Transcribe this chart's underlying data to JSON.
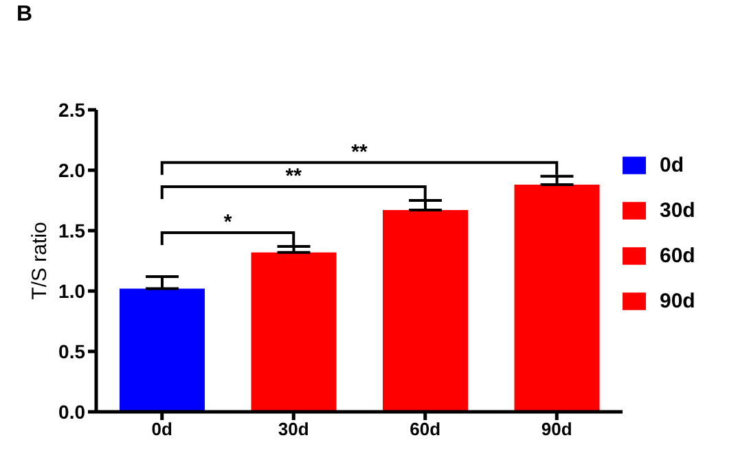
{
  "chart_data": {
    "type": "bar",
    "title": "B",
    "ylabel": "T/S ratio",
    "categories": [
      "0d",
      "30d",
      "60d",
      "90d"
    ],
    "series": [
      {
        "name": "0d",
        "color": "#0000ff",
        "values": [
          1.02,
          null,
          null,
          null
        ],
        "errors": [
          [
            1.02,
            1.12
          ],
          null,
          null,
          null
        ]
      },
      {
        "name": "30d",
        "color": "#ff0000",
        "values": [
          null,
          1.32,
          null,
          null
        ],
        "errors": [
          null,
          [
            1.32,
            1.37
          ],
          null,
          null
        ]
      },
      {
        "name": "60d",
        "color": "#ff0000",
        "values": [
          null,
          null,
          1.67,
          null
        ],
        "errors": [
          null,
          null,
          [
            1.67,
            1.75
          ],
          null
        ]
      },
      {
        "name": "90d",
        "color": "#ff0000",
        "values": [
          null,
          null,
          null,
          1.88
        ],
        "errors": [
          null,
          null,
          null,
          [
            1.88,
            1.95
          ]
        ]
      }
    ],
    "ylim": [
      0,
      2.5
    ],
    "yticks": [
      {
        "value": 0,
        "label": "0.0"
      },
      {
        "value": 0.5,
        "label": "0.5"
      },
      {
        "value": 1,
        "label": "1.0"
      },
      {
        "value": 1.5,
        "label": "1.5"
      },
      {
        "value": 2,
        "label": "2.0"
      },
      {
        "value": 2.5,
        "label": "2.5"
      }
    ],
    "annotations": [
      "*",
      "**",
      "**"
    ],
    "legend": "top right"
  }
}
